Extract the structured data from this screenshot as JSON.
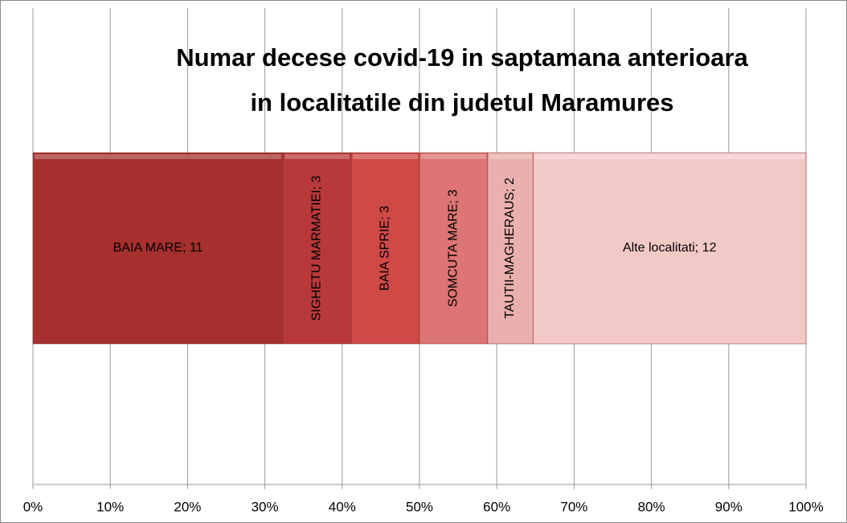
{
  "chart_data": {
    "type": "bar",
    "orientation": "horizontal",
    "stacking": "percent",
    "title": [
      "Numar decese covid-19 in saptamana anterioara",
      "in localitatile din judetul Maramures"
    ],
    "data_label_separator": "; ",
    "series": [
      {
        "name": "BAIA MARE",
        "color": "#a5302d",
        "values": [
          11
        ]
      },
      {
        "name": "SIGHETU MARMATIEI",
        "color": "#b8393a",
        "values": [
          3
        ]
      },
      {
        "name": "BAIA SPRIE",
        "color": "#cf4a47",
        "values": [
          3
        ]
      },
      {
        "name": "SOMCUTA MARE",
        "color": "#dc7573",
        "values": [
          3
        ]
      },
      {
        "name": "TAUTII-MAGHERAUS",
        "color": "#eab0ae",
        "values": [
          2
        ]
      },
      {
        "name": "Alte localitati",
        "color": "#f3c9c8",
        "values": [
          12
        ]
      }
    ],
    "xlim": [
      0,
      100
    ],
    "xticks": [
      {
        "value": 0,
        "label": "0%"
      },
      {
        "value": 10,
        "label": "10%"
      },
      {
        "value": 20,
        "label": "20%"
      },
      {
        "value": 30,
        "label": "30%"
      },
      {
        "value": 40,
        "label": "40%"
      },
      {
        "value": 50,
        "label": "50%"
      },
      {
        "value": 60,
        "label": "60%"
      },
      {
        "value": 70,
        "label": "70%"
      },
      {
        "value": 80,
        "label": "80%"
      },
      {
        "value": 90,
        "label": "90%"
      },
      {
        "value": 100,
        "label": "100%"
      }
    ],
    "grid": true
  }
}
